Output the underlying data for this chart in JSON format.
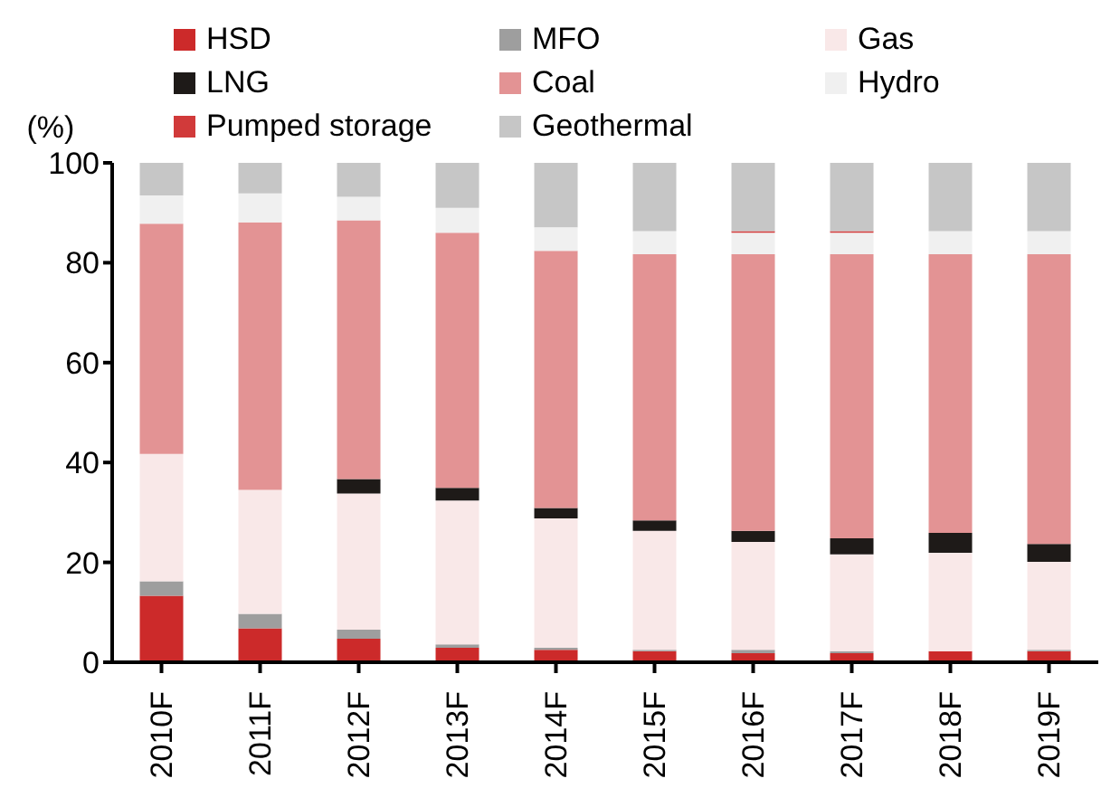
{
  "chart_data": {
    "type": "bar",
    "stacked": true,
    "ylabel": "(%)",
    "categories": [
      "2010F",
      "2011F",
      "2012F",
      "2013F",
      "2014F",
      "2015F",
      "2016F",
      "2017F",
      "2018F",
      "2019F"
    ],
    "series": [
      {
        "name": "HSD",
        "color": "#cc2a2a",
        "values": [
          13.3,
          6.8,
          4.7,
          2.9,
          2.5,
          2.2,
          1.8,
          1.8,
          2.2,
          2.2
        ]
      },
      {
        "name": "MFO",
        "color": "#9e9e9e",
        "values": [
          2.9,
          2.9,
          1.8,
          0.7,
          0.4,
          0.3,
          0.7,
          0.4,
          0,
          0.3
        ]
      },
      {
        "name": "Gas",
        "color": "#f9e8e8",
        "values": [
          25.5,
          24.8,
          27.3,
          28.8,
          25.9,
          23.8,
          21.6,
          19.4,
          19.7,
          17.6
        ]
      },
      {
        "name": "LNG",
        "color": "#1e1a18",
        "values": [
          0,
          0,
          2.9,
          2.5,
          2.1,
          2.1,
          2.2,
          3.2,
          4.0,
          3.6
        ]
      },
      {
        "name": "Coal",
        "color": "#e39394",
        "values": [
          46.1,
          53.6,
          51.8,
          51.1,
          51.5,
          53.3,
          55.4,
          56.9,
          55.8,
          58.0
        ]
      },
      {
        "name": "Hydro",
        "color": "#f0f0f0",
        "values": [
          5.7,
          5.8,
          4.7,
          5.0,
          4.7,
          4.6,
          4.3,
          4.3,
          4.6,
          4.6
        ]
      },
      {
        "name": "Pumped storage",
        "color": "#d13a3a",
        "values": [
          0,
          0,
          0,
          0,
          0,
          0,
          0.3,
          0.3,
          0,
          0
        ]
      },
      {
        "name": "Geothermal",
        "color": "#c6c6c6",
        "values": [
          6.5,
          6.1,
          6.8,
          9.0,
          12.9,
          13.7,
          13.7,
          13.7,
          13.7,
          13.7
        ]
      }
    ],
    "ylim": [
      0,
      100
    ],
    "yticks": [
      0,
      20,
      40,
      60,
      80,
      100
    ],
    "grid": false,
    "legend": "top"
  }
}
